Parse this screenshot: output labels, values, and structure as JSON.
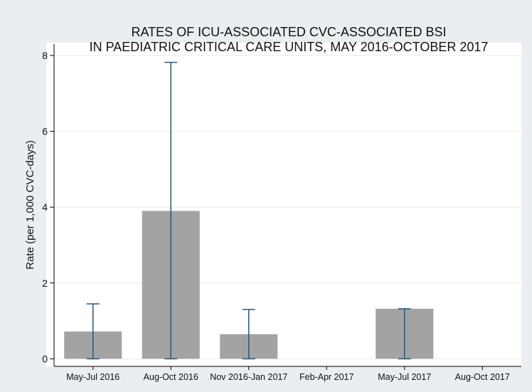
{
  "chart_data": {
    "type": "bar",
    "title": "RATES OF ICU-ASSOCIATED CVC-ASSOCIATED BSI",
    "subtitle": "IN PAEDIATRIC CRITICAL CARE UNITS, MAY 2016-OCTOBER 2017",
    "xlabel": "",
    "ylabel": "Rate (per 1,000 CVC-days)",
    "categories": [
      "May-Jul 2016",
      "Aug-Oct 2016",
      "Nov 2016-Jan 2017",
      "Feb-Apr 2017",
      "May-Jul 2017",
      "Aug-Oct 2017"
    ],
    "values": [
      0.72,
      3.9,
      0.65,
      0,
      1.32,
      0
    ],
    "error_lower": [
      0,
      0,
      0,
      null,
      0,
      null
    ],
    "error_upper": [
      1.45,
      7.82,
      1.3,
      null,
      1.32,
      null
    ],
    "yticks": [
      0,
      2,
      4,
      6,
      8
    ],
    "ylim": [
      -0.2,
      8.3
    ],
    "grid": true,
    "legend": "none",
    "colors": {
      "outer_background": "#e9eef1",
      "plot_background": "#ffffff",
      "bar": "#a3a3a3",
      "error_bar": "#2f5478",
      "grid": "#e9eef1",
      "axis": "#000000"
    }
  }
}
